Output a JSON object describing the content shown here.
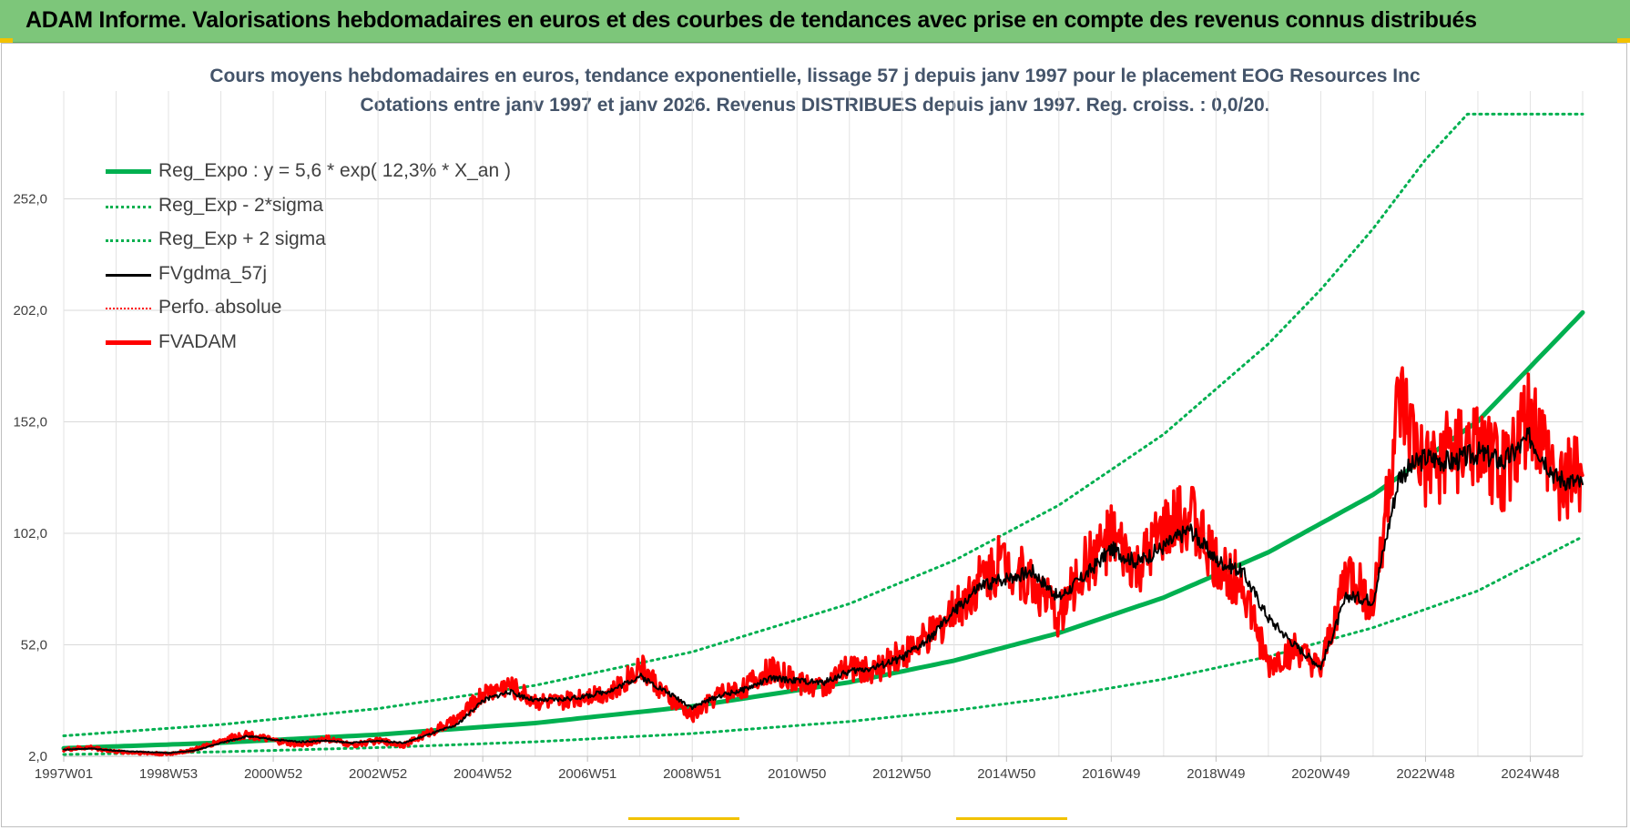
{
  "header": {
    "title": "ADAM Informe. Valorisations hebdomadaires en euros et des courbes de tendances avec prise en compte des revenus connus distribués"
  },
  "colors": {
    "banner_bg": "#7dc67a",
    "reg_expo": "#00b050",
    "sigma_bands": "#00b050",
    "fvgdma": "#000000",
    "perfo": "#ff0000",
    "fvadam": "#ff0000",
    "title_text": "#44546a"
  },
  "chart_data": {
    "type": "line",
    "title": "Cours moyens hebdomadaires en euros, tendance exponentielle, lissage 57 j depuis janv 1997  pour le placement EOG Resources Inc",
    "subtitle": "Cotations entre janv 1997 et janv 2026. Revenus DISTRIBUES depuis janv 1997. Reg. croiss. : 0,0/20.",
    "xlabel": "",
    "ylabel": "",
    "x_ticks": [
      "1997W01",
      "1998W53",
      "2000W52",
      "2002W52",
      "2004W52",
      "2006W51",
      "2008W51",
      "2010W50",
      "2012W50",
      "2014W50",
      "2016W49",
      "2018W49",
      "2020W49",
      "2022W48",
      "2024W48"
    ],
    "x_range": [
      1997.0,
      2026.0
    ],
    "y_ticks": [
      "2,0",
      "52,0",
      "102,0",
      "152,0",
      "202,0",
      "252,0"
    ],
    "ylim": [
      2,
      290
    ],
    "grid": true,
    "legend_position": "top-left",
    "legend": [
      "Reg_Expo : y = 5,6 * exp( 12,3% *  X_an )",
      "Reg_Exp - 2*sigma",
      "Reg_Exp + 2 sigma",
      "FVgdma_57j",
      "Perfo. absolue",
      "FVADAM"
    ],
    "series": [
      {
        "name": "Reg_Expo : y = 5,6 * exp( 12,3% *  X_an )",
        "style": "solid-thick",
        "x": [
          1997.0,
          2000.0,
          2003.0,
          2006.0,
          2009.0,
          2012.0,
          2014.0,
          2016.0,
          2018.0,
          2020.0,
          2022.0,
          2024.0,
          2026.0
        ],
        "values": [
          5.6,
          8.1,
          11.7,
          16.9,
          24.4,
          35.2,
          44.9,
          57.3,
          73.2,
          93.5,
          119.3,
          152.3,
          201.0
        ]
      },
      {
        "name": "Reg_Exp - 2*sigma",
        "style": "dotted",
        "x": [
          1997.0,
          2000.0,
          2003.0,
          2006.0,
          2009.0,
          2012.0,
          2014.0,
          2016.0,
          2018.0,
          2020.0,
          2022.0,
          2024.0,
          2026.0
        ],
        "values": [
          2.8,
          4.0,
          5.9,
          8.5,
          12.2,
          17.6,
          22.5,
          28.7,
          36.6,
          46.7,
          59.7,
          76.2,
          100.5
        ]
      },
      {
        "name": "Reg_Exp + 2 sigma",
        "style": "dotted",
        "x": [
          1997.0,
          2000.0,
          2003.0,
          2006.0,
          2009.0,
          2012.0,
          2014.0,
          2016.0,
          2018.0,
          2020.0,
          2021.0,
          2022.0,
          2023.0,
          2023.8,
          2026.0
        ],
        "values": [
          11.2,
          16.2,
          23.4,
          33.8,
          48.8,
          70.4,
          89.8,
          114.6,
          146.4,
          187.0,
          211.3,
          238.6,
          269.6,
          290.0,
          290.0
        ]
      },
      {
        "name": "FVgdma_57j",
        "style": "solid-thin",
        "x": [
          1997.0,
          1997.5,
          1998.0,
          1998.5,
          1999.0,
          1999.5,
          2000.0,
          2000.5,
          2001.0,
          2001.5,
          2002.0,
          2002.5,
          2003.0,
          2003.5,
          2004.0,
          2004.5,
          2005.0,
          2005.5,
          2006.0,
          2006.5,
          2007.0,
          2007.5,
          2008.0,
          2008.5,
          2009.0,
          2009.5,
          2010.0,
          2010.5,
          2011.0,
          2011.5,
          2012.0,
          2012.5,
          2013.0,
          2013.5,
          2014.0,
          2014.5,
          2015.0,
          2015.5,
          2016.0,
          2016.5,
          2017.0,
          2017.5,
          2018.0,
          2018.5,
          2019.0,
          2019.5,
          2020.0,
          2020.5,
          2021.0,
          2021.5,
          2022.0,
          2022.5,
          2023.0,
          2023.5,
          2024.0,
          2024.5,
          2025.0,
          2025.5,
          2026.0
        ],
        "values": [
          5.0,
          5.5,
          4.5,
          4.0,
          3.5,
          4.5,
          8.0,
          11.0,
          9.5,
          8.5,
          9.0,
          8.0,
          9.0,
          8.0,
          12.0,
          16.0,
          27.0,
          31.0,
          27.0,
          27.5,
          29.0,
          32.0,
          38.0,
          31.0,
          24.0,
          29.0,
          32.0,
          37.0,
          36.0,
          35.0,
          40.0,
          42.0,
          46.0,
          54.0,
          67.0,
          78.0,
          82.0,
          85.0,
          73.0,
          83.0,
          95.0,
          89.0,
          96.0,
          104.0,
          90.0,
          85.0,
          64.0,
          52.0,
          42.0,
          74.0,
          72.0,
          128.0,
          136.0,
          134.0,
          138.0,
          134.0,
          145.0,
          127.0,
          124.0
        ]
      },
      {
        "name": "Perfo. absolue",
        "style": "dotted",
        "x": [],
        "values": []
      },
      {
        "name": "FVADAM",
        "style": "solid-thick",
        "x": [
          1997.0,
          1997.5,
          1998.0,
          1998.5,
          1999.0,
          1999.5,
          2000.0,
          2000.5,
          2001.0,
          2001.5,
          2002.0,
          2002.5,
          2003.0,
          2003.5,
          2004.0,
          2004.5,
          2005.0,
          2005.5,
          2006.0,
          2006.5,
          2007.0,
          2007.5,
          2008.0,
          2008.5,
          2009.0,
          2009.5,
          2010.0,
          2010.5,
          2011.0,
          2011.5,
          2012.0,
          2012.5,
          2013.0,
          2013.5,
          2014.0,
          2014.5,
          2015.0,
          2015.5,
          2016.0,
          2016.5,
          2017.0,
          2017.5,
          2018.0,
          2018.5,
          2019.0,
          2019.5,
          2020.0,
          2020.5,
          2021.0,
          2021.5,
          2022.0,
          2022.5,
          2023.0,
          2023.5,
          2024.0,
          2024.5,
          2025.0,
          2025.5,
          2026.0
        ],
        "values": [
          5.0,
          6.0,
          4.0,
          3.5,
          3.0,
          5.0,
          9.0,
          12.0,
          9.0,
          7.0,
          10.0,
          7.0,
          9.0,
          7.0,
          13.0,
          18.0,
          30.0,
          34.0,
          27.0,
          26.0,
          30.0,
          31.0,
          43.0,
          29.0,
          20.0,
          30.0,
          33.0,
          41.0,
          35.0,
          33.0,
          42.0,
          40.0,
          48.0,
          55.0,
          67.0,
          82.0,
          90.0,
          80.0,
          65.0,
          88.0,
          100.0,
          85.0,
          102.0,
          112.0,
          88.0,
          80.0,
          42.0,
          50.0,
          40.0,
          85.0,
          70.0,
          160.0,
          128.0,
          140.0,
          138.0,
          130.0,
          155.0,
          125.0,
          128.0
        ]
      }
    ]
  }
}
